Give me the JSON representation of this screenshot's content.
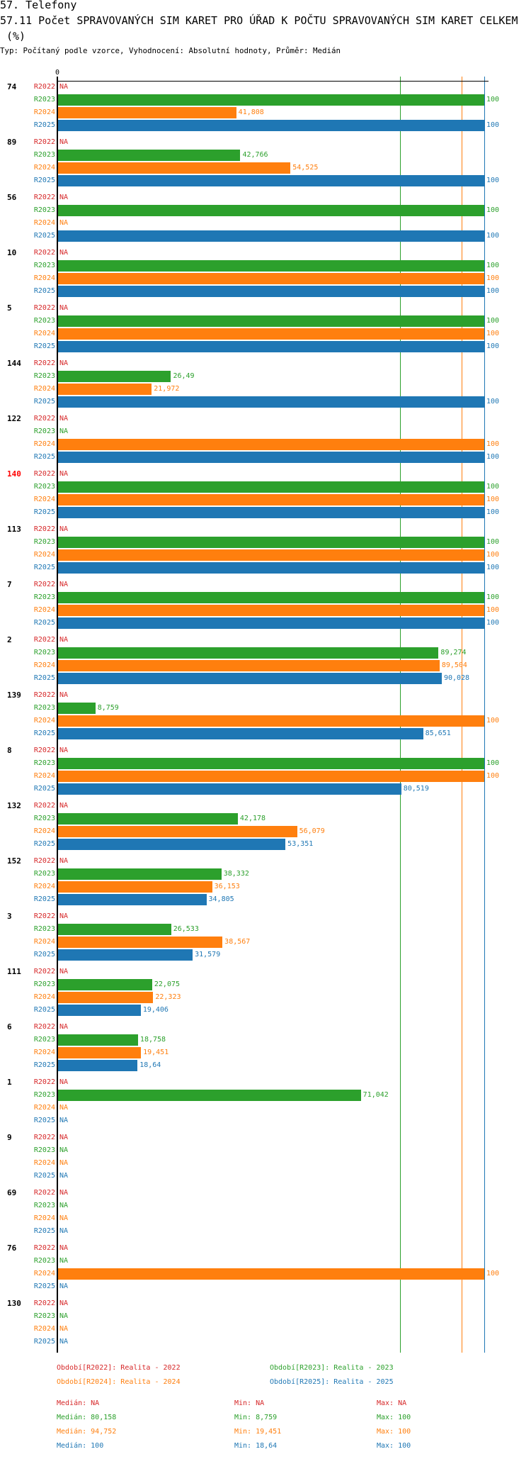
{
  "header": {
    "title": "57. Telefony",
    "subtitle_line1": "57.11 Počet SPRAVOVANÝCH SIM KARET PRO ÚŘAD K POČTU SPRAVOVANÝCH SIM KARET CELKEM",
    "subtitle_line2": "(%)",
    "info": "Typ: Počítaný podle vzorce, Vyhodnocení: Absolutní hodnoty, Průměr: Medián"
  },
  "colors": {
    "R2022": "#d62728",
    "R2023": "#2ca02c",
    "R2024": "#ff7f0e",
    "R2025": "#1f77b4",
    "highlight": "#ff0000"
  },
  "chart_data": {
    "type": "bar",
    "orientation": "horizontal",
    "title": "57.11 Počet SPRAVOVANÝCH SIM KARET PRO ÚŘAD K POČTU SPRAVOVANÝCH SIM KARET CELKEM (%)",
    "axis_zero_label": "0",
    "xlim": [
      0,
      100
    ],
    "na_label": "NA",
    "series_names": [
      "R2022",
      "R2023",
      "R2024",
      "R2025"
    ],
    "groups": [
      {
        "label": "74",
        "values": [
          null,
          100,
          41.808,
          100
        ]
      },
      {
        "label": "89",
        "values": [
          null,
          42.766,
          54.525,
          100
        ]
      },
      {
        "label": "56",
        "values": [
          null,
          100,
          null,
          100
        ]
      },
      {
        "label": "10",
        "values": [
          null,
          100,
          100,
          100
        ]
      },
      {
        "label": "5",
        "values": [
          null,
          100,
          100,
          100
        ]
      },
      {
        "label": "144",
        "values": [
          null,
          26.49,
          21.972,
          100
        ]
      },
      {
        "label": "122",
        "values": [
          null,
          null,
          100,
          100
        ]
      },
      {
        "label": "140",
        "values": [
          null,
          100,
          100,
          100
        ],
        "highlight": true
      },
      {
        "label": "113",
        "values": [
          null,
          100,
          100,
          100
        ]
      },
      {
        "label": "7",
        "values": [
          null,
          100,
          100,
          100
        ]
      },
      {
        "label": "2",
        "values": [
          null,
          89.274,
          89.504,
          90.028
        ]
      },
      {
        "label": "139",
        "values": [
          null,
          8.759,
          100,
          85.651
        ]
      },
      {
        "label": "8",
        "values": [
          null,
          100,
          100,
          80.519
        ]
      },
      {
        "label": "132",
        "values": [
          null,
          42.178,
          56.079,
          53.351
        ]
      },
      {
        "label": "152",
        "values": [
          null,
          38.332,
          36.153,
          34.805
        ]
      },
      {
        "label": "3",
        "values": [
          null,
          26.533,
          38.567,
          31.579
        ]
      },
      {
        "label": "111",
        "values": [
          null,
          22.075,
          22.323,
          19.406
        ]
      },
      {
        "label": "6",
        "values": [
          null,
          18.758,
          19.451,
          18.64
        ]
      },
      {
        "label": "1",
        "values": [
          null,
          71.042,
          null,
          null
        ]
      },
      {
        "label": "9",
        "values": [
          null,
          null,
          null,
          null
        ]
      },
      {
        "label": "69",
        "values": [
          null,
          null,
          null,
          null
        ]
      },
      {
        "label": "76",
        "values": [
          null,
          null,
          100,
          null
        ]
      },
      {
        "label": "130",
        "values": [
          null,
          null,
          null,
          null
        ]
      }
    ],
    "median_lines": {
      "R2023": 80.158,
      "R2024": 94.752,
      "R2025": 100
    }
  },
  "legend": [
    {
      "key": "R2022",
      "text": "Období[R2022]: Realita - 2022"
    },
    {
      "key": "R2023",
      "text": "Období[R2023]: Realita - 2023"
    },
    {
      "key": "R2024",
      "text": "Období[R2024]: Realita - 2024"
    },
    {
      "key": "R2025",
      "text": "Období[R2025]: Realita - 2025"
    }
  ],
  "stats": [
    {
      "key": "R2022",
      "median": "Medián: NA",
      "min": "Min: NA",
      "max": "Max: NA"
    },
    {
      "key": "R2023",
      "median": "Medián: 80,158",
      "min": "Min: 8,759",
      "max": "Max: 100"
    },
    {
      "key": "R2024",
      "median": "Medián: 94,752",
      "min": "Min: 19,451",
      "max": "Max: 100"
    },
    {
      "key": "R2025",
      "median": "Medián: 100",
      "min": "Min: 18,64",
      "max": "Max: 100"
    }
  ]
}
